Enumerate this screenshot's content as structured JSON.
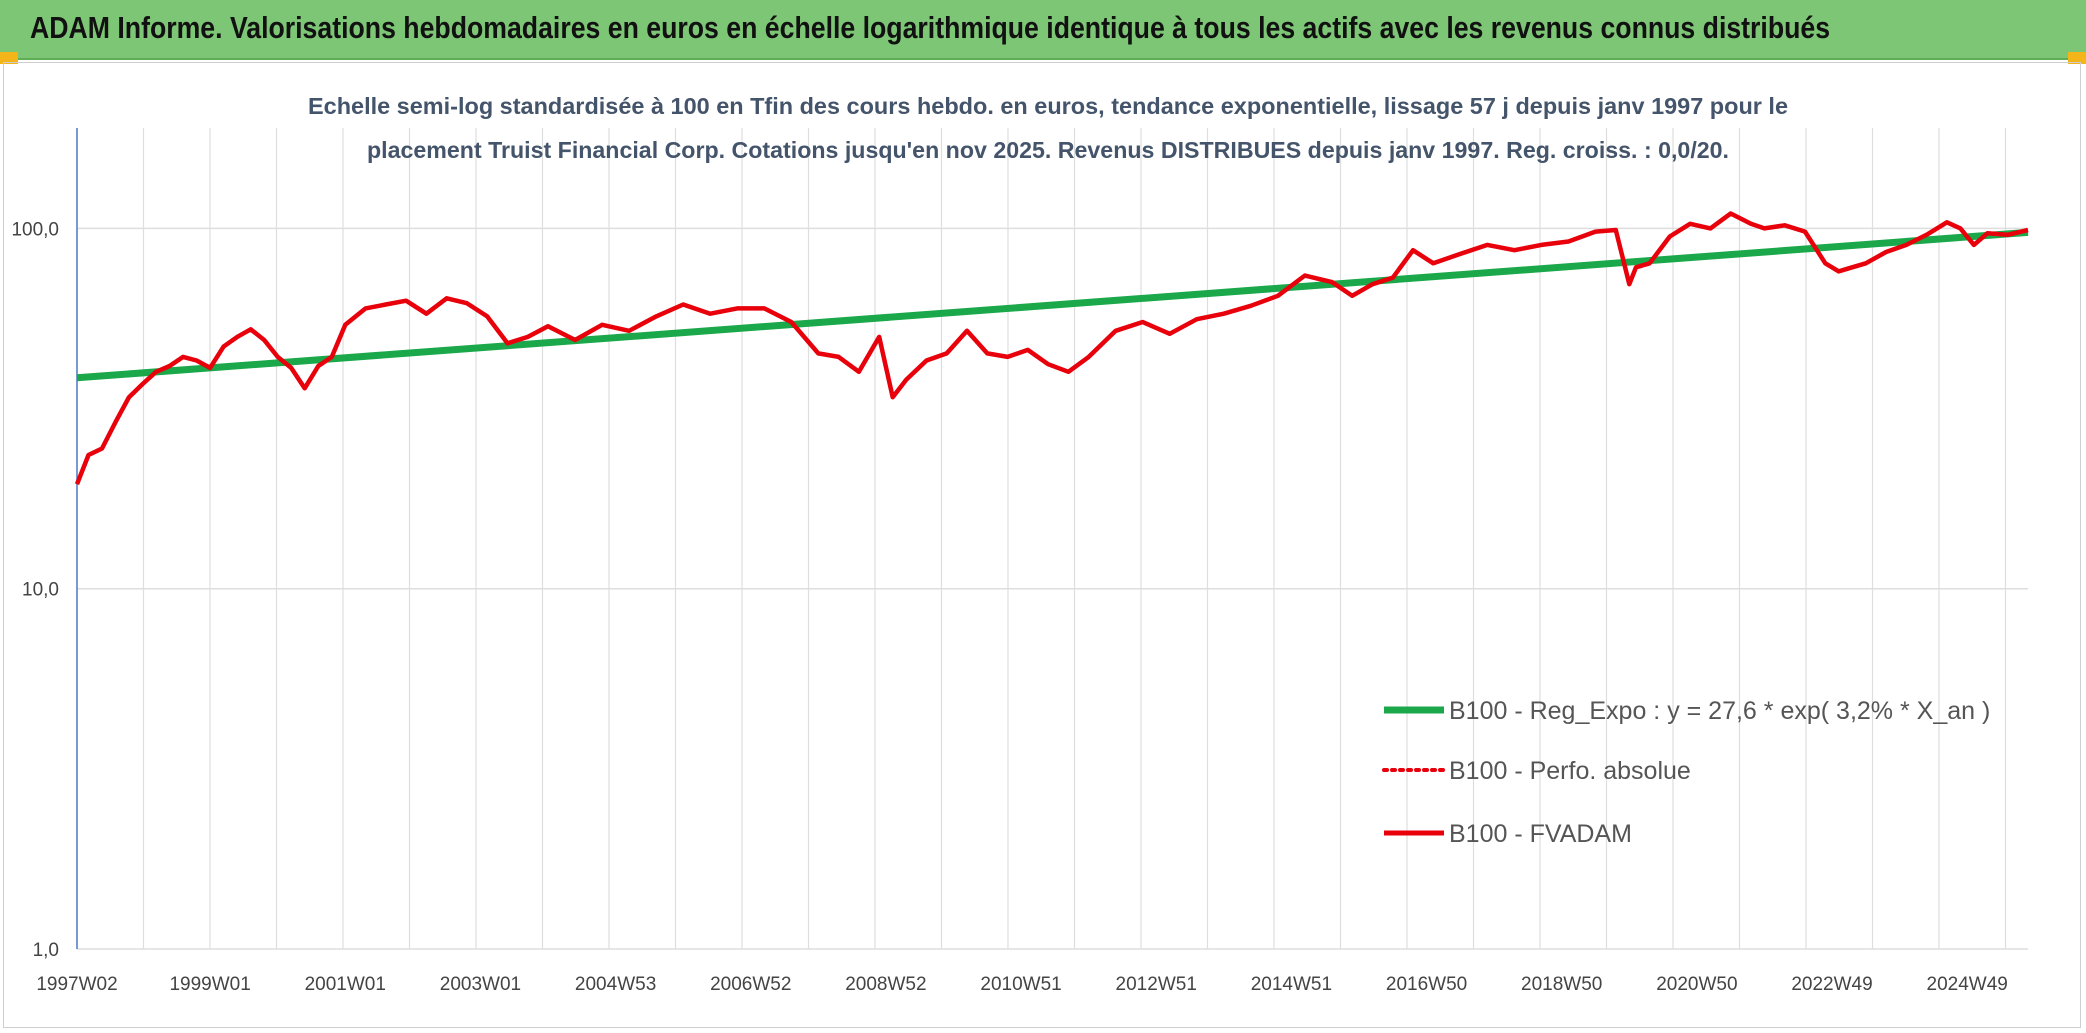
{
  "header": {
    "title": "ADAM Informe. Valorisations hebdomadaires en euros en échelle logarithmique identique à tous les actifs avec les revenus connus distribués"
  },
  "colors": {
    "banner": "#7dc675",
    "trend": "#1aa84a",
    "fvadam": "#e8000b",
    "perfo": "#e8000b",
    "grid": "#dedede",
    "corner": "#f3b51a"
  },
  "chart_data": {
    "type": "line",
    "title_line1": "Echelle semi-log standardisée à 100 en Tfin des cours hebdo. en euros, tendance exponentielle, lissage 57 j depuis janv 1997 pour le",
    "title_line2": "placement Truist Financial Corp. Cotations jusqu'en nov 2025. Revenus DISTRIBUES depuis janv 1997. Reg. croiss. : 0,0/20.",
    "y_scale": "log",
    "ylim": [
      1,
      190
    ],
    "xlim": [
      1997.03,
      2025.9
    ],
    "y_ticks": [
      {
        "value": 1,
        "label": "1,0"
      },
      {
        "value": 10,
        "label": "10,0"
      },
      {
        "value": 100,
        "label": "100,0"
      }
    ],
    "x_ticks": [
      {
        "value": 1997.03,
        "label": "1997W02"
      },
      {
        "value": 1999.0,
        "label": "1999W01"
      },
      {
        "value": 2001.0,
        "label": "2001W01"
      },
      {
        "value": 2003.0,
        "label": "2003W01"
      },
      {
        "value": 2005.0,
        "label": "2004W53"
      },
      {
        "value": 2007.0,
        "label": "2006W52"
      },
      {
        "value": 2009.0,
        "label": "2008W52"
      },
      {
        "value": 2011.0,
        "label": "2010W51"
      },
      {
        "value": 2013.0,
        "label": "2012W51"
      },
      {
        "value": 2015.0,
        "label": "2014W51"
      },
      {
        "value": 2017.0,
        "label": "2016W50"
      },
      {
        "value": 2019.0,
        "label": "2018W50"
      },
      {
        "value": 2021.0,
        "label": "2020W50"
      },
      {
        "value": 2023.0,
        "label": "2022W49"
      },
      {
        "value": 2025.0,
        "label": "2024W49"
      }
    ],
    "grid": true,
    "legend_position": "bottom-right",
    "series": [
      {
        "name": "B100 - Reg_Expo : y = 27,6 * exp( 3,2% *  X_an )",
        "style": "solid-thick",
        "x": [
          1997.03,
          2025.9
        ],
        "y": [
          38.5,
          97.5
        ]
      },
      {
        "name": "B100 - Perfo. absolue",
        "style": "dotted",
        "x": [],
        "y": []
      },
      {
        "name": "B100 - FVADAM",
        "style": "solid",
        "x": [
          1997.03,
          1997.2,
          1997.4,
          1997.6,
          1997.8,
          1998.0,
          1998.2,
          1998.4,
          1998.6,
          1998.8,
          1999.0,
          1999.2,
          1999.4,
          1999.6,
          1999.8,
          2000.0,
          2000.2,
          2000.4,
          2000.6,
          2000.8,
          2001.0,
          2001.3,
          2001.6,
          2001.9,
          2002.2,
          2002.5,
          2002.8,
          2003.1,
          2003.4,
          2003.7,
          2004.0,
          2004.4,
          2004.8,
          2005.2,
          2005.6,
          2006.0,
          2006.4,
          2006.8,
          2007.2,
          2007.6,
          2008.0,
          2008.3,
          2008.6,
          2008.9,
          2009.1,
          2009.3,
          2009.6,
          2009.9,
          2010.2,
          2010.5,
          2010.8,
          2011.1,
          2011.4,
          2011.7,
          2012.0,
          2012.4,
          2012.8,
          2013.2,
          2013.6,
          2014.0,
          2014.4,
          2014.8,
          2015.2,
          2015.6,
          2015.9,
          2016.2,
          2016.5,
          2016.8,
          2017.1,
          2017.5,
          2017.9,
          2018.3,
          2018.7,
          2019.1,
          2019.5,
          2019.8,
          2020.0,
          2020.1,
          2020.3,
          2020.6,
          2020.9,
          2021.2,
          2021.5,
          2021.8,
          2022.0,
          2022.3,
          2022.6,
          2022.9,
          2023.1,
          2023.2,
          2023.5,
          2023.8,
          2024.1,
          2024.4,
          2024.7,
          2024.9,
          2025.1,
          2025.3,
          2025.6,
          2025.9
        ],
        "y": [
          19.5,
          23.5,
          24.5,
          29.0,
          34.0,
          37.0,
          40.0,
          41.5,
          44.0,
          43.0,
          41.0,
          47.0,
          50.0,
          52.5,
          49.0,
          44.0,
          41.0,
          36.0,
          41.5,
          44.0,
          54.0,
          60.0,
          61.5,
          63.0,
          58.0,
          64.0,
          62.0,
          57.0,
          48.0,
          50.0,
          53.5,
          49.0,
          54.0,
          52.0,
          57.0,
          61.5,
          58.0,
          60.0,
          60.0,
          55.0,
          45.0,
          44.0,
          40.0,
          50.0,
          34.0,
          38.0,
          43.0,
          45.0,
          52.0,
          45.0,
          44.0,
          46.0,
          42.0,
          40.0,
          44.0,
          52.0,
          55.0,
          51.0,
          56.0,
          58.0,
          61.0,
          65.0,
          74.0,
          71.0,
          65.0,
          70.0,
          73.0,
          87.0,
          80.0,
          85.0,
          90.0,
          87.0,
          90.0,
          92.0,
          98.0,
          99.0,
          70.0,
          78.0,
          80.0,
          95.0,
          103.0,
          100.0,
          110.0,
          103.0,
          100.0,
          102.0,
          98.0,
          80.0,
          76.0,
          77.0,
          80.0,
          86.0,
          90.0,
          96.0,
          104.0,
          100.0,
          90.0,
          97.0,
          96.0,
          99.0
        ]
      }
    ]
  }
}
